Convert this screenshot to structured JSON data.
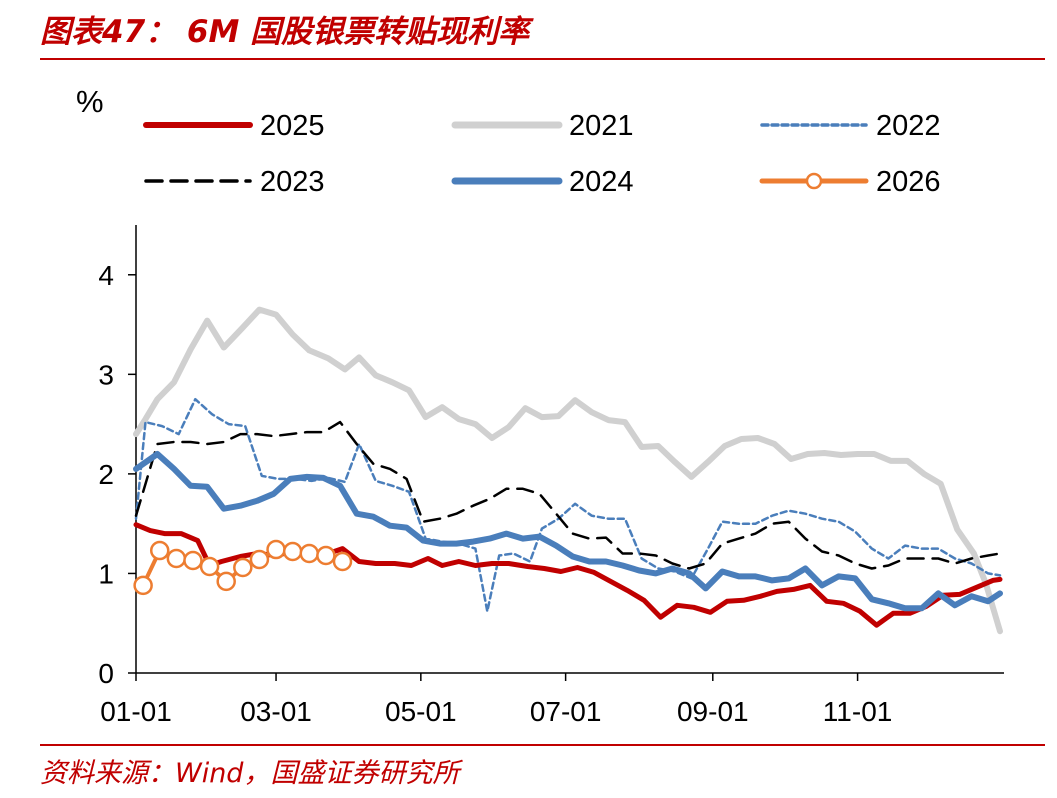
{
  "header": {
    "title": "图表47：  6M 国股银票转贴现利率"
  },
  "footer": {
    "source": "资料来源：Wind，国盛证券研究所"
  },
  "chart_data": {
    "type": "line",
    "title": "6M 国股银票转贴现利率",
    "ylabel": "%",
    "xlabel": "",
    "ylim": [
      0,
      4.5
    ],
    "yticks": [
      "0",
      "1",
      "2",
      "3",
      "4"
    ],
    "xlim": [
      1,
      365
    ],
    "xticks": [
      {
        "day": 1,
        "label": "01-01"
      },
      {
        "day": 60,
        "label": "03-01"
      },
      {
        "day": 121,
        "label": "05-01"
      },
      {
        "day": 182,
        "label": "07-01"
      },
      {
        "day": 244,
        "label": "09-01"
      },
      {
        "day": 305,
        "label": "11-01"
      }
    ],
    "grid": false,
    "legend_position": "top",
    "series": [
      {
        "name": "2025",
        "color": "#c00000",
        "style": "solid-thick",
        "points": [
          [
            1,
            1.49
          ],
          [
            7,
            1.43
          ],
          [
            13,
            1.4
          ],
          [
            20,
            1.4
          ],
          [
            27,
            1.33
          ],
          [
            32,
            1.08
          ],
          [
            37,
            1.12
          ],
          [
            45,
            1.17
          ],
          [
            52,
            1.2
          ],
          [
            60,
            1.18
          ],
          [
            67,
            1.22
          ],
          [
            75,
            1.22
          ],
          [
            82,
            1.2
          ],
          [
            88,
            1.25
          ],
          [
            95,
            1.12
          ],
          [
            102,
            1.1
          ],
          [
            110,
            1.1
          ],
          [
            117,
            1.08
          ],
          [
            124,
            1.15
          ],
          [
            130,
            1.08
          ],
          [
            137,
            1.12
          ],
          [
            144,
            1.08
          ],
          [
            151,
            1.1
          ],
          [
            158,
            1.1
          ],
          [
            166,
            1.07
          ],
          [
            173,
            1.05
          ],
          [
            180,
            1.02
          ],
          [
            187,
            1.06
          ],
          [
            194,
            1.01
          ],
          [
            201,
            0.92
          ],
          [
            208,
            0.83
          ],
          [
            215,
            0.73
          ],
          [
            222,
            0.56
          ],
          [
            229,
            0.68
          ],
          [
            236,
            0.66
          ],
          [
            243,
            0.61
          ],
          [
            250,
            0.72
          ],
          [
            257,
            0.73
          ],
          [
            264,
            0.77
          ],
          [
            271,
            0.82
          ],
          [
            278,
            0.84
          ],
          [
            285,
            0.88
          ],
          [
            292,
            0.72
          ],
          [
            299,
            0.7
          ],
          [
            306,
            0.62
          ],
          [
            313,
            0.48
          ],
          [
            320,
            0.6
          ],
          [
            327,
            0.6
          ],
          [
            334,
            0.67
          ],
          [
            341,
            0.78
          ],
          [
            348,
            0.79
          ],
          [
            355,
            0.86
          ],
          [
            362,
            0.93
          ],
          [
            365,
            0.94
          ]
        ]
      },
      {
        "name": "2021",
        "color": "#d0d0d0",
        "style": "solid-thick",
        "points": [
          [
            1,
            2.4
          ],
          [
            5,
            2.55
          ],
          [
            10,
            2.75
          ],
          [
            17,
            2.92
          ],
          [
            24,
            3.25
          ],
          [
            31,
            3.54
          ],
          [
            38,
            3.27
          ],
          [
            46,
            3.47
          ],
          [
            53,
            3.65
          ],
          [
            60,
            3.6
          ],
          [
            67,
            3.4
          ],
          [
            74,
            3.24
          ],
          [
            82,
            3.16
          ],
          [
            89,
            3.05
          ],
          [
            95,
            3.17
          ],
          [
            102,
            2.99
          ],
          [
            109,
            2.92
          ],
          [
            116,
            2.84
          ],
          [
            123,
            2.57
          ],
          [
            130,
            2.67
          ],
          [
            137,
            2.55
          ],
          [
            144,
            2.5
          ],
          [
            151,
            2.36
          ],
          [
            158,
            2.47
          ],
          [
            165,
            2.66
          ],
          [
            172,
            2.57
          ],
          [
            179,
            2.58
          ],
          [
            186,
            2.74
          ],
          [
            193,
            2.62
          ],
          [
            200,
            2.54
          ],
          [
            207,
            2.52
          ],
          [
            214,
            2.27
          ],
          [
            221,
            2.28
          ],
          [
            228,
            2.12
          ],
          [
            235,
            1.97
          ],
          [
            242,
            2.12
          ],
          [
            249,
            2.28
          ],
          [
            256,
            2.35
          ],
          [
            263,
            2.36
          ],
          [
            270,
            2.3
          ],
          [
            277,
            2.15
          ],
          [
            284,
            2.2
          ],
          [
            291,
            2.21
          ],
          [
            298,
            2.19
          ],
          [
            305,
            2.2
          ],
          [
            312,
            2.2
          ],
          [
            319,
            2.13
          ],
          [
            326,
            2.13
          ],
          [
            333,
            2.0
          ],
          [
            340,
            1.9
          ],
          [
            347,
            1.44
          ],
          [
            354,
            1.2
          ],
          [
            359,
            0.9
          ],
          [
            365,
            0.42
          ]
        ]
      },
      {
        "name": "2022",
        "color": "#4a7ebb",
        "style": "dotted",
        "points": [
          [
            1,
            1.55
          ],
          [
            5,
            2.52
          ],
          [
            12,
            2.48
          ],
          [
            19,
            2.4
          ],
          [
            26,
            2.75
          ],
          [
            33,
            2.6
          ],
          [
            40,
            2.5
          ],
          [
            47,
            2.48
          ],
          [
            54,
            1.98
          ],
          [
            61,
            1.95
          ],
          [
            68,
            1.95
          ],
          [
            75,
            1.93
          ],
          [
            82,
            1.96
          ],
          [
            89,
            1.92
          ],
          [
            95,
            2.3
          ],
          [
            102,
            1.93
          ],
          [
            109,
            1.88
          ],
          [
            116,
            1.82
          ],
          [
            123,
            1.35
          ],
          [
            130,
            1.32
          ],
          [
            137,
            1.3
          ],
          [
            144,
            1.25
          ],
          [
            149,
            0.62
          ],
          [
            154,
            1.18
          ],
          [
            160,
            1.2
          ],
          [
            167,
            1.12
          ],
          [
            172,
            1.45
          ],
          [
            179,
            1.55
          ],
          [
            186,
            1.7
          ],
          [
            193,
            1.58
          ],
          [
            200,
            1.55
          ],
          [
            207,
            1.55
          ],
          [
            214,
            1.15
          ],
          [
            221,
            1.05
          ],
          [
            228,
            1.02
          ],
          [
            235,
            0.95
          ],
          [
            242,
            1.25
          ],
          [
            248,
            1.52
          ],
          [
            255,
            1.5
          ],
          [
            262,
            1.5
          ],
          [
            269,
            1.58
          ],
          [
            276,
            1.63
          ],
          [
            283,
            1.6
          ],
          [
            290,
            1.55
          ],
          [
            297,
            1.52
          ],
          [
            304,
            1.42
          ],
          [
            311,
            1.25
          ],
          [
            318,
            1.15
          ],
          [
            325,
            1.28
          ],
          [
            332,
            1.25
          ],
          [
            339,
            1.25
          ],
          [
            346,
            1.15
          ],
          [
            353,
            1.1
          ],
          [
            360,
            1.0
          ],
          [
            365,
            0.98
          ]
        ]
      },
      {
        "name": "2023",
        "color": "#000000",
        "style": "dashed",
        "points": [
          [
            1,
            1.58
          ],
          [
            10,
            2.3
          ],
          [
            17,
            2.32
          ],
          [
            24,
            2.32
          ],
          [
            31,
            2.3
          ],
          [
            38,
            2.32
          ],
          [
            45,
            2.4
          ],
          [
            52,
            2.4
          ],
          [
            59,
            2.38
          ],
          [
            66,
            2.4
          ],
          [
            73,
            2.42
          ],
          [
            80,
            2.42
          ],
          [
            87,
            2.52
          ],
          [
            94,
            2.3
          ],
          [
            101,
            2.1
          ],
          [
            108,
            2.05
          ],
          [
            115,
            1.95
          ],
          [
            122,
            1.52
          ],
          [
            129,
            1.55
          ],
          [
            136,
            1.6
          ],
          [
            143,
            1.68
          ],
          [
            150,
            1.75
          ],
          [
            157,
            1.85
          ],
          [
            164,
            1.85
          ],
          [
            171,
            1.8
          ],
          [
            178,
            1.6
          ],
          [
            185,
            1.4
          ],
          [
            192,
            1.35
          ],
          [
            199,
            1.36
          ],
          [
            206,
            1.2
          ],
          [
            213,
            1.2
          ],
          [
            220,
            1.18
          ],
          [
            227,
            1.1
          ],
          [
            234,
            1.05
          ],
          [
            241,
            1.1
          ],
          [
            248,
            1.3
          ],
          [
            255,
            1.35
          ],
          [
            262,
            1.4
          ],
          [
            269,
            1.5
          ],
          [
            276,
            1.52
          ],
          [
            283,
            1.35
          ],
          [
            290,
            1.22
          ],
          [
            297,
            1.18
          ],
          [
            304,
            1.1
          ],
          [
            311,
            1.05
          ],
          [
            318,
            1.08
          ],
          [
            325,
            1.15
          ],
          [
            332,
            1.15
          ],
          [
            339,
            1.15
          ],
          [
            346,
            1.1
          ],
          [
            353,
            1.15
          ],
          [
            360,
            1.18
          ],
          [
            365,
            1.2
          ]
        ]
      },
      {
        "name": "2024",
        "color": "#4a7ebb",
        "style": "solid-thick",
        "points": [
          [
            1,
            2.05
          ],
          [
            10,
            2.2
          ],
          [
            17,
            2.05
          ],
          [
            24,
            1.88
          ],
          [
            31,
            1.87
          ],
          [
            38,
            1.65
          ],
          [
            45,
            1.68
          ],
          [
            52,
            1.73
          ],
          [
            59,
            1.8
          ],
          [
            66,
            1.95
          ],
          [
            73,
            1.97
          ],
          [
            80,
            1.96
          ],
          [
            87,
            1.88
          ],
          [
            94,
            1.6
          ],
          [
            101,
            1.57
          ],
          [
            108,
            1.48
          ],
          [
            115,
            1.46
          ],
          [
            122,
            1.33
          ],
          [
            129,
            1.3
          ],
          [
            136,
            1.3
          ],
          [
            143,
            1.32
          ],
          [
            150,
            1.35
          ],
          [
            157,
            1.4
          ],
          [
            164,
            1.35
          ],
          [
            171,
            1.37
          ],
          [
            178,
            1.28
          ],
          [
            185,
            1.17
          ],
          [
            192,
            1.12
          ],
          [
            199,
            1.12
          ],
          [
            206,
            1.08
          ],
          [
            213,
            1.03
          ],
          [
            220,
            1.0
          ],
          [
            227,
            1.05
          ],
          [
            234,
            1.0
          ],
          [
            241,
            0.85
          ],
          [
            248,
            1.02
          ],
          [
            255,
            0.97
          ],
          [
            262,
            0.97
          ],
          [
            269,
            0.93
          ],
          [
            276,
            0.95
          ],
          [
            283,
            1.05
          ],
          [
            290,
            0.88
          ],
          [
            297,
            0.97
          ],
          [
            304,
            0.95
          ],
          [
            311,
            0.74
          ],
          [
            318,
            0.7
          ],
          [
            325,
            0.65
          ],
          [
            332,
            0.65
          ],
          [
            339,
            0.8
          ],
          [
            346,
            0.68
          ],
          [
            353,
            0.77
          ],
          [
            360,
            0.72
          ],
          [
            365,
            0.8
          ]
        ]
      },
      {
        "name": "2026",
        "color": "#ed7d31",
        "style": "marker-circle",
        "points": [
          [
            4,
            0.88
          ],
          [
            11,
            1.23
          ],
          [
            18,
            1.15
          ],
          [
            25,
            1.13
          ],
          [
            32,
            1.07
          ],
          [
            39,
            0.92
          ],
          [
            46,
            1.06
          ],
          [
            53,
            1.14
          ],
          [
            60,
            1.24
          ],
          [
            67,
            1.22
          ],
          [
            74,
            1.2
          ],
          [
            81,
            1.18
          ],
          [
            88,
            1.12
          ]
        ]
      }
    ]
  }
}
